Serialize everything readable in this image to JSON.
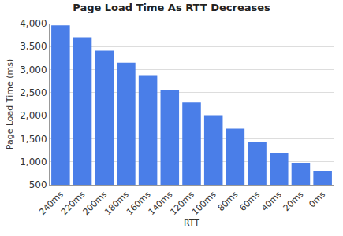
{
  "chart_data": {
    "type": "bar",
    "title": "Page Load Time As RTT Decreases",
    "x_label": "RTT",
    "y_label": "Page Load Time (ms)",
    "categories": [
      "240ms",
      "220ms",
      "200ms",
      "180ms",
      "160ms",
      "140ms",
      "120ms",
      "100ms",
      "80ms",
      "60ms",
      "40ms",
      "20ms",
      "0ms"
    ],
    "values": [
      3960,
      3700,
      3410,
      3150,
      2880,
      2560,
      2290,
      2010,
      1720,
      1440,
      1200,
      980,
      800
    ],
    "color": "#4a7ee8",
    "ylim": [
      500,
      4000
    ],
    "yticks": [
      500,
      {
        "value": 1000,
        "label": "1,000"
      },
      {
        "value": 1500,
        "label": "1,500"
      },
      {
        "value": 2000,
        "label": "2,000"
      },
      {
        "value": 2500,
        "label": "2,500"
      },
      {
        "value": 3000,
        "label": "3,000"
      },
      {
        "value": 3500,
        "label": "3,500"
      },
      {
        "value": 4000,
        "label": "4,000"
      }
    ],
    "grid": true
  }
}
